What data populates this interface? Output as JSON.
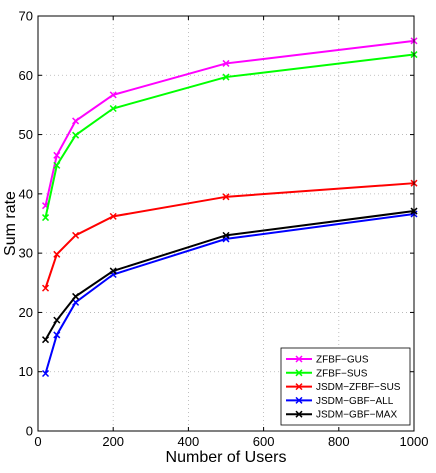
{
  "chart_data": {
    "type": "line",
    "title": "",
    "xlabel": "Number of Users",
    "ylabel": "Sum rate",
    "xlim": [
      0,
      1000
    ],
    "ylim": [
      0,
      70
    ],
    "xticks": [
      0,
      200,
      400,
      600,
      800,
      1000
    ],
    "yticks": [
      0,
      10,
      20,
      30,
      40,
      50,
      60,
      70
    ],
    "grid": true,
    "legend_position": "bottom-right",
    "marker": "x",
    "series": [
      {
        "name": "ZFBF−GUS",
        "color": "#ff00ff",
        "x": [
          20,
          50,
          100,
          200,
          500,
          1000
        ],
        "y": [
          38.0,
          46.5,
          52.3,
          56.7,
          62.0,
          65.8
        ]
      },
      {
        "name": "ZFBF−SUS",
        "color": "#00ff00",
        "x": [
          20,
          50,
          100,
          200,
          500,
          1000
        ],
        "y": [
          36.0,
          44.8,
          49.9,
          54.4,
          59.7,
          63.5
        ]
      },
      {
        "name": "JSDM−ZFBF−SUS",
        "color": "#ff0000",
        "x": [
          20,
          50,
          100,
          200,
          500,
          1000
        ],
        "y": [
          24.1,
          29.8,
          33.0,
          36.2,
          39.5,
          41.8
        ]
      },
      {
        "name": "JSDM−GBF−ALL",
        "color": "#0000ff",
        "x": [
          20,
          50,
          100,
          200,
          500,
          1000
        ],
        "y": [
          9.7,
          16.2,
          21.7,
          26.4,
          32.4,
          36.6
        ]
      },
      {
        "name": "JSDM−GBF−MAX",
        "color": "#000000",
        "x": [
          20,
          50,
          100,
          200,
          500,
          1000
        ],
        "y": [
          15.4,
          18.7,
          22.7,
          27.0,
          33.0,
          37.1
        ]
      }
    ]
  }
}
